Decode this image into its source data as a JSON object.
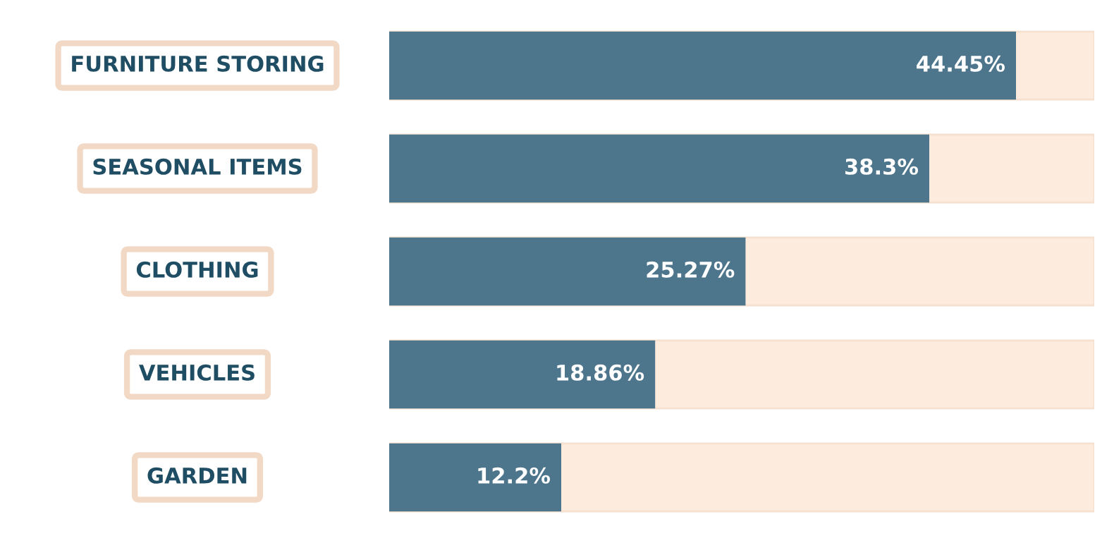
{
  "chart_data": {
    "type": "bar",
    "orientation": "horizontal",
    "categories": [
      "FURNITURE STORING",
      "SEASONAL ITEMS",
      "CLOTHING",
      "VEHICLES",
      "GARDEN"
    ],
    "values": [
      44.45,
      38.3,
      25.27,
      18.86,
      12.2
    ],
    "value_labels": [
      "44.45%",
      "38.3%",
      "25.27%",
      "18.86%",
      "12.2%"
    ],
    "color": "#4d768c",
    "xlim": [
      0,
      50
    ],
    "tick_labels": "y"
  }
}
